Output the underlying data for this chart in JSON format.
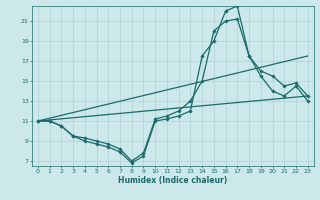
{
  "xlabel": "Humidex (Indice chaleur)",
  "xlim": [
    -0.5,
    23.5
  ],
  "ylim": [
    6.5,
    22.5
  ],
  "xticks": [
    0,
    1,
    2,
    3,
    4,
    5,
    6,
    7,
    8,
    9,
    10,
    11,
    12,
    13,
    14,
    15,
    16,
    17,
    18,
    19,
    20,
    21,
    22,
    23
  ],
  "yticks": [
    7,
    9,
    11,
    13,
    15,
    17,
    19,
    21
  ],
  "bg_color": "#cce8ea",
  "grid_color": "#aacccc",
  "line_color": "#1a6b6b",
  "series": [
    {
      "x": [
        0,
        1,
        2,
        3,
        4,
        5,
        6,
        7,
        8,
        9,
        10,
        11,
        12,
        13,
        14,
        15,
        16,
        17,
        18,
        19,
        20,
        21,
        22,
        23
      ],
      "y": [
        11,
        11,
        10.5,
        9.5,
        9,
        8.7,
        8.4,
        7.9,
        6.8,
        7.5,
        11,
        11.2,
        11.5,
        12,
        17.5,
        19,
        22,
        22.5,
        17.5,
        15.5,
        14,
        13.5,
        14.5,
        13
      ],
      "marker": "D",
      "markersize": 1.8,
      "linewidth": 0.9
    },
    {
      "x": [
        0,
        1,
        2,
        3,
        4,
        5,
        6,
        7,
        8,
        9,
        10,
        11,
        12,
        13,
        14,
        15,
        16,
        17,
        18,
        19,
        20,
        21,
        22,
        23
      ],
      "y": [
        11,
        11,
        10.5,
        9.5,
        9.3,
        9,
        8.7,
        8.2,
        7,
        7.8,
        11.2,
        11.5,
        12,
        13,
        15,
        20,
        21,
        21.2,
        17.5,
        16,
        15.5,
        14.5,
        14.8,
        13.5
      ],
      "marker": "D",
      "markersize": 1.8,
      "linewidth": 0.9
    },
    {
      "x": [
        0,
        23
      ],
      "y": [
        11,
        17.5
      ],
      "marker": null,
      "markersize": 0,
      "linewidth": 0.9
    },
    {
      "x": [
        0,
        23
      ],
      "y": [
        11,
        13.5
      ],
      "marker": null,
      "markersize": 0,
      "linewidth": 0.9
    }
  ]
}
